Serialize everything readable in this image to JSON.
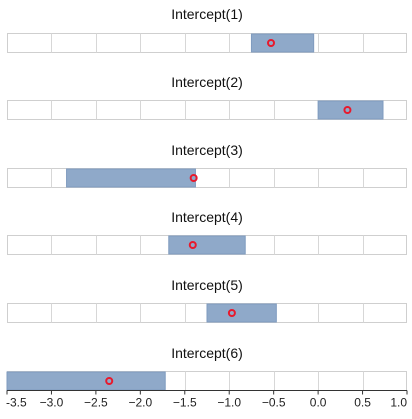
{
  "chart_data": {
    "type": "interval",
    "xlim": [
      -3.5,
      1.0
    ],
    "x_ticks": [
      -3.5,
      -3.0,
      -2.5,
      -2.0,
      -1.5,
      -1.0,
      -0.5,
      0.0,
      0.5,
      1.0
    ],
    "x_tick_labels": [
      "-3.5",
      "−3.0",
      "−2.5",
      "−2.0",
      "−1.5",
      "−1.0",
      "−0.5",
      "0.0",
      "0.5",
      "1.0"
    ],
    "grid": true,
    "panels": [
      {
        "title": "Intercept(1)",
        "low": -0.75,
        "high": -0.05,
        "point": -0.53
      },
      {
        "title": "Intercept(2)",
        "low": 0.0,
        "high": 0.73,
        "point": 0.33
      },
      {
        "title": "Intercept(3)",
        "low": -2.83,
        "high": -1.38,
        "point": -1.4
      },
      {
        "title": "Intercept(4)",
        "low": -1.68,
        "high": -0.82,
        "point": -1.41
      },
      {
        "title": "Intercept(5)",
        "low": -1.25,
        "high": -0.47,
        "point": -0.97
      },
      {
        "title": "Intercept(6)",
        "low": -3.5,
        "high": -1.72,
        "point": -2.35
      }
    ],
    "colors": {
      "interval": "#8fa9c9",
      "interval_edge": "#7f9bbf",
      "point": "#e8192c",
      "grid": "#d7d7d7",
      "frame": "#cfcfcf",
      "axis": "#333333"
    }
  }
}
